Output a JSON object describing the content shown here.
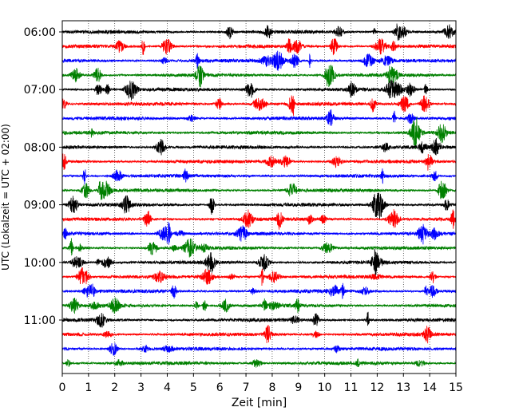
{
  "chart_data": {
    "type": "line",
    "title": "",
    "xlabel": "Zeit  [min]",
    "ylabel": "UTC (Lokalzeit = UTC + 02:00)",
    "xlim": [
      0,
      15
    ],
    "x_ticks": [
      "0",
      "1",
      "2",
      "3",
      "4",
      "5",
      "6",
      "7",
      "8",
      "9",
      "10",
      "11",
      "12",
      "13",
      "14",
      "15"
    ],
    "y_ticks": [
      "06:00",
      "07:00",
      "08:00",
      "09:00",
      "10:00",
      "11:00"
    ],
    "trace_interval_minutes": 15,
    "grid": "vertical dotted",
    "trace_colors": [
      "#000000",
      "#ff0000",
      "#0000ff",
      "#008000"
    ],
    "traces": [
      {
        "time": "06:00",
        "color": "#000000"
      },
      {
        "time": "06:15",
        "color": "#ff0000"
      },
      {
        "time": "06:30",
        "color": "#0000ff"
      },
      {
        "time": "06:45",
        "color": "#008000"
      },
      {
        "time": "07:00",
        "color": "#000000"
      },
      {
        "time": "07:15",
        "color": "#ff0000"
      },
      {
        "time": "07:30",
        "color": "#0000ff"
      },
      {
        "time": "07:45",
        "color": "#008000"
      },
      {
        "time": "08:00",
        "color": "#000000"
      },
      {
        "time": "08:15",
        "color": "#ff0000"
      },
      {
        "time": "08:30",
        "color": "#0000ff"
      },
      {
        "time": "08:45",
        "color": "#008000"
      },
      {
        "time": "09:00",
        "color": "#000000"
      },
      {
        "time": "09:15",
        "color": "#ff0000"
      },
      {
        "time": "09:30",
        "color": "#0000ff"
      },
      {
        "time": "09:45",
        "color": "#008000"
      },
      {
        "time": "10:00",
        "color": "#000000"
      },
      {
        "time": "10:15",
        "color": "#ff0000"
      },
      {
        "time": "10:30",
        "color": "#0000ff"
      },
      {
        "time": "10:45",
        "color": "#008000"
      },
      {
        "time": "11:00",
        "color": "#000000"
      },
      {
        "time": "11:15",
        "color": "#ff0000"
      },
      {
        "time": "11:30",
        "color": "#0000ff"
      },
      {
        "time": "11:45",
        "color": "#008000"
      }
    ]
  }
}
